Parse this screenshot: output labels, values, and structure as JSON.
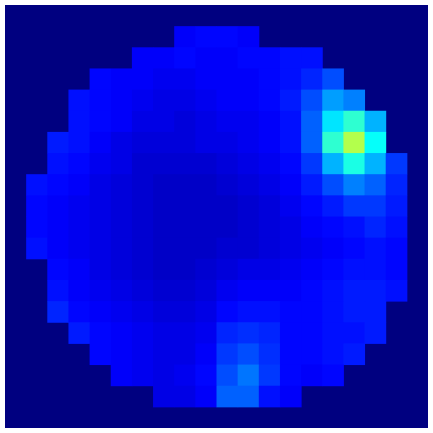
{
  "chart_data": {
    "type": "heatmap",
    "colormap": "jet",
    "zlim": [
      0,
      1
    ],
    "z": [
      [
        null,
        null,
        null,
        null,
        null,
        null,
        null,
        null,
        null,
        null,
        null,
        null,
        null,
        null,
        null,
        null,
        null,
        null,
        null,
        null
      ],
      [
        null,
        null,
        null,
        null,
        null,
        null,
        null,
        null,
        0.12,
        0.13,
        0.13,
        0.12,
        null,
        null,
        null,
        null,
        null,
        null,
        null,
        null
      ],
      [
        null,
        null,
        null,
        null,
        null,
        null,
        0.12,
        0.12,
        0.13,
        0.12,
        0.12,
        0.13,
        0.13,
        0.14,
        0.14,
        null,
        null,
        null,
        null,
        null
      ],
      [
        null,
        null,
        null,
        null,
        0.13,
        0.12,
        0.12,
        0.11,
        0.11,
        0.12,
        0.12,
        0.12,
        0.13,
        0.14,
        0.16,
        0.2,
        null,
        null,
        null,
        null
      ],
      [
        null,
        null,
        null,
        0.14,
        0.13,
        0.12,
        0.11,
        0.1,
        0.1,
        0.11,
        0.12,
        0.12,
        0.13,
        0.15,
        0.2,
        0.28,
        0.25,
        null,
        null,
        null
      ],
      [
        null,
        null,
        null,
        0.14,
        0.13,
        0.12,
        0.1,
        0.1,
        0.09,
        0.1,
        0.11,
        0.11,
        0.12,
        0.14,
        0.22,
        0.35,
        0.42,
        0.3,
        null,
        null
      ],
      [
        null,
        null,
        0.15,
        0.14,
        0.12,
        0.1,
        0.09,
        0.09,
        0.09,
        0.1,
        0.1,
        0.11,
        0.12,
        0.14,
        0.22,
        0.42,
        0.55,
        0.38,
        null,
        null
      ],
      [
        null,
        null,
        0.14,
        0.13,
        0.11,
        0.1,
        0.08,
        0.08,
        0.08,
        0.08,
        0.09,
        0.1,
        0.11,
        0.13,
        0.18,
        0.3,
        0.4,
        0.3,
        0.18,
        null
      ],
      [
        null,
        0.14,
        0.13,
        0.12,
        0.1,
        0.09,
        0.08,
        0.07,
        0.07,
        0.07,
        0.08,
        0.09,
        0.1,
        0.12,
        0.15,
        0.2,
        0.25,
        0.22,
        0.16,
        null
      ],
      [
        null,
        0.13,
        0.12,
        0.11,
        0.1,
        0.09,
        0.08,
        0.07,
        0.07,
        0.07,
        0.07,
        0.08,
        0.09,
        0.11,
        0.13,
        0.15,
        0.18,
        0.18,
        0.15,
        null
      ],
      [
        null,
        0.13,
        0.12,
        0.11,
        0.1,
        0.09,
        0.08,
        0.07,
        0.07,
        0.07,
        0.07,
        0.08,
        0.09,
        0.1,
        0.12,
        0.13,
        0.14,
        0.16,
        0.14,
        null
      ],
      [
        null,
        0.14,
        0.12,
        0.11,
        0.1,
        0.09,
        0.08,
        0.07,
        0.07,
        0.07,
        0.08,
        0.08,
        0.09,
        0.1,
        0.11,
        0.12,
        0.13,
        0.14,
        0.13,
        null
      ],
      [
        null,
        null,
        0.13,
        0.12,
        0.1,
        0.09,
        0.08,
        0.07,
        0.07,
        0.08,
        0.09,
        0.1,
        0.1,
        0.11,
        0.12,
        0.13,
        0.14,
        0.14,
        0.13,
        null
      ],
      [
        null,
        null,
        0.14,
        0.12,
        0.11,
        0.1,
        0.09,
        0.08,
        0.08,
        0.09,
        0.11,
        0.12,
        0.12,
        0.12,
        0.13,
        0.14,
        0.15,
        0.15,
        0.14,
        null
      ],
      [
        null,
        null,
        0.16,
        0.13,
        0.12,
        0.11,
        0.1,
        0.09,
        0.09,
        0.1,
        0.13,
        0.14,
        0.14,
        0.13,
        0.13,
        0.14,
        0.15,
        0.15,
        null,
        null
      ],
      [
        null,
        null,
        null,
        0.15,
        0.13,
        0.12,
        0.11,
        0.1,
        0.1,
        0.11,
        0.16,
        0.17,
        0.16,
        0.13,
        0.13,
        0.14,
        0.14,
        0.15,
        null,
        null
      ],
      [
        null,
        null,
        null,
        null,
        0.13,
        0.12,
        0.11,
        0.1,
        0.1,
        0.12,
        0.18,
        0.2,
        0.17,
        0.13,
        0.13,
        0.14,
        0.15,
        null,
        null,
        null
      ],
      [
        null,
        null,
        null,
        null,
        null,
        0.12,
        0.11,
        0.1,
        0.11,
        0.13,
        0.2,
        0.24,
        0.18,
        0.13,
        0.12,
        0.13,
        null,
        null,
        null,
        null
      ],
      [
        null,
        null,
        null,
        null,
        null,
        null,
        null,
        0.1,
        0.1,
        0.12,
        0.22,
        0.22,
        0.14,
        0.12,
        null,
        null,
        null,
        null,
        null,
        null
      ],
      [
        null,
        null,
        null,
        null,
        null,
        null,
        null,
        null,
        null,
        null,
        null,
        null,
        null,
        null,
        null,
        null,
        null,
        null,
        null,
        null
      ]
    ]
  }
}
